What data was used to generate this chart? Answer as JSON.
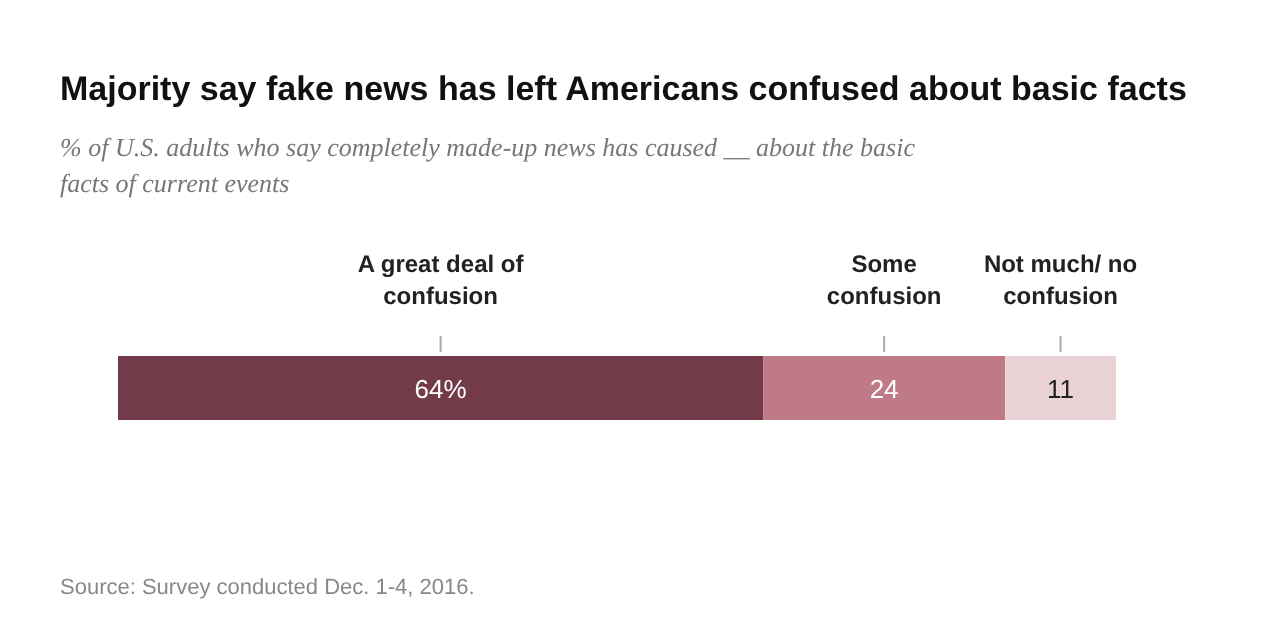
{
  "chart_data": {
    "type": "bar",
    "orientation": "horizontal",
    "stacked": true,
    "title": "Majority say fake news has left Americans confused about basic facts",
    "subtitle": "% of U.S. adults who say completely made-up news has caused __ about the basic facts of current events",
    "categories": [
      null
    ],
    "series": [
      {
        "name": "A great deal of confusion",
        "color": "#733b49",
        "values": [
          64
        ],
        "value_labels": [
          "64%"
        ]
      },
      {
        "name": "Some confusion",
        "color": "#bf7a87",
        "values": [
          24
        ],
        "value_labels": [
          "24"
        ]
      },
      {
        "name": "Not much/ no confusion",
        "color": "#ead3d7",
        "values": [
          11
        ],
        "value_labels": [
          "11"
        ]
      }
    ],
    "annotations": [
      "Source: Survey conducted Dec. 1-4, 2016."
    ]
  }
}
